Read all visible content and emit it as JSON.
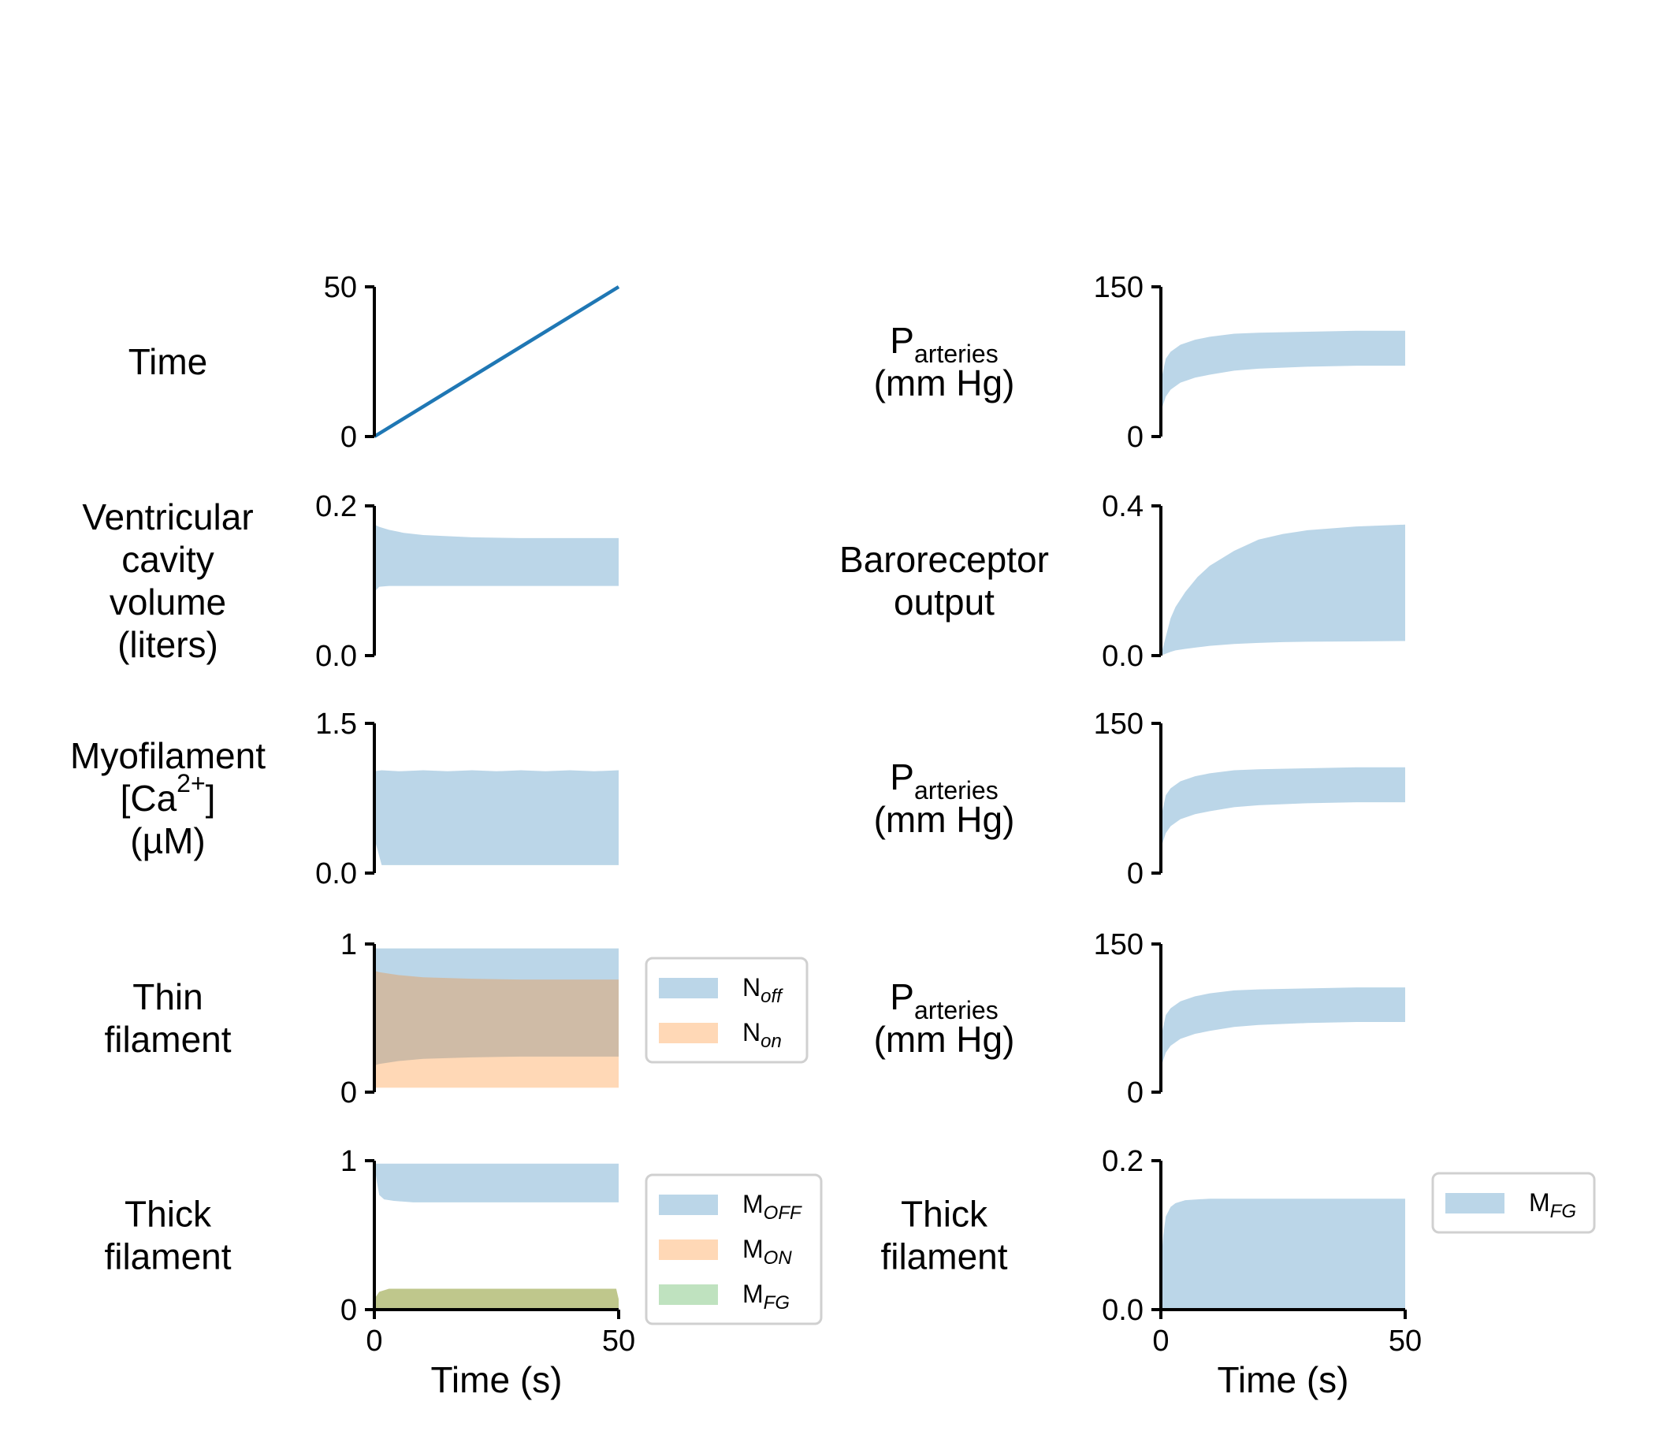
{
  "colors": {
    "blue": "#1f77b4",
    "orange": "#ff7f0e",
    "green": "#2ca02c",
    "axis": "#000000"
  },
  "chart_data": [
    {
      "id": "time",
      "type": "line",
      "col": 0,
      "row": 0,
      "label": [
        "Time"
      ],
      "ylim": [
        0,
        50
      ],
      "yticks": [
        "0",
        "50"
      ],
      "x": [
        0,
        50
      ],
      "y": [
        0,
        50
      ],
      "color": "#1f77b4"
    },
    {
      "id": "ventricular-volume",
      "type": "area",
      "col": 0,
      "row": 1,
      "label": [
        "Ventricular",
        "cavity",
        "volume",
        "(liters)"
      ],
      "ylim": [
        0,
        0.2
      ],
      "yticks": [
        "0.0",
        "0.2"
      ],
      "series": [
        {
          "name": "",
          "color": "#1f77b4",
          "x": [
            0,
            1,
            3,
            6,
            10,
            20,
            30,
            40,
            50
          ],
          "upper": [
            0.175,
            0.172,
            0.168,
            0.164,
            0.161,
            0.158,
            0.157,
            0.157,
            0.157
          ],
          "lower": [
            0.085,
            0.092,
            0.093,
            0.093,
            0.093,
            0.093,
            0.093,
            0.093,
            0.093
          ]
        }
      ]
    },
    {
      "id": "myofilament-ca",
      "type": "area",
      "col": 0,
      "row": 2,
      "label": [
        "Myofilament",
        "[Ca2+]",
        "(µM)"
      ],
      "ylim": [
        0,
        1.5
      ],
      "yticks": [
        "0.0",
        "1.5"
      ],
      "series": [
        {
          "name": "",
          "color": "#1f77b4",
          "x": [
            0,
            1.5,
            5,
            10,
            15,
            20,
            25,
            30,
            35,
            40,
            45,
            50
          ],
          "upper": [
            1.02,
            1.03,
            1.02,
            1.03,
            1.02,
            1.03,
            1.02,
            1.03,
            1.02,
            1.03,
            1.02,
            1.03
          ],
          "lower": [
            0.35,
            0.08,
            0.08,
            0.08,
            0.08,
            0.08,
            0.08,
            0.08,
            0.08,
            0.08,
            0.08,
            0.08
          ]
        }
      ]
    },
    {
      "id": "thin-filament",
      "type": "area",
      "col": 0,
      "row": 3,
      "label": [
        "Thin",
        "filament"
      ],
      "ylim": [
        0,
        1
      ],
      "yticks": [
        "0",
        "1"
      ],
      "legend": [
        {
          "base": "N",
          "sub": "off",
          "color": "#1f77b4"
        },
        {
          "base": "N",
          "sub": "on",
          "color": "#ff7f0e"
        }
      ],
      "series": [
        {
          "name": "Noff",
          "color": "#1f77b4",
          "x": [
            0,
            1,
            5,
            10,
            20,
            30,
            40,
            50
          ],
          "upper": [
            0.97,
            0.97,
            0.97,
            0.97,
            0.97,
            0.97,
            0.97,
            0.97
          ],
          "lower": [
            0.18,
            0.19,
            0.21,
            0.225,
            0.235,
            0.24,
            0.24,
            0.24
          ]
        },
        {
          "name": "Non",
          "color": "#ff7f0e",
          "x": [
            0,
            1,
            5,
            10,
            20,
            30,
            40,
            50
          ],
          "upper": [
            0.82,
            0.81,
            0.79,
            0.775,
            0.765,
            0.76,
            0.76,
            0.76
          ],
          "lower": [
            0.03,
            0.03,
            0.03,
            0.03,
            0.03,
            0.03,
            0.03,
            0.03
          ]
        }
      ]
    },
    {
      "id": "thick-filament-left",
      "type": "area",
      "col": 0,
      "row": 4,
      "label": [
        "Thick",
        "filament"
      ],
      "ylim": [
        0,
        1
      ],
      "yticks": [
        "0",
        "1"
      ],
      "xticks": [
        "0",
        "50"
      ],
      "xlabel": "Time (s)",
      "legend": [
        {
          "base": "M",
          "sub": "OFF",
          "color": "#1f77b4"
        },
        {
          "base": "M",
          "sub": "ON",
          "color": "#ff7f0e"
        },
        {
          "base": "M",
          "sub": "FG",
          "color": "#2ca02c"
        }
      ],
      "series": [
        {
          "name": "MOFF",
          "color": "#1f77b4",
          "x": [
            0,
            0.5,
            1,
            2,
            4,
            8,
            15,
            30,
            49.5,
            50
          ],
          "upper": [
            0.98,
            0.98,
            0.98,
            0.98,
            0.98,
            0.98,
            0.98,
            0.98,
            0.98,
            0.98
          ],
          "lower": [
            0.98,
            0.86,
            0.77,
            0.74,
            0.73,
            0.72,
            0.72,
            0.72,
            0.72,
            0.72
          ]
        },
        {
          "name": "MON",
          "color": "#ff7f0e",
          "x": [
            0,
            1,
            3,
            10,
            30,
            49.5,
            50
          ],
          "upper": [
            0.07,
            0.12,
            0.14,
            0.14,
            0.14,
            0.14,
            0.07
          ],
          "lower": [
            0,
            0,
            0,
            0,
            0,
            0,
            0
          ]
        },
        {
          "name": "MFG",
          "color": "#2ca02c",
          "x": [
            0,
            1,
            3,
            10,
            30,
            49.5,
            50
          ],
          "upper": [
            0.07,
            0.12,
            0.14,
            0.14,
            0.14,
            0.14,
            0.07
          ],
          "lower": [
            0,
            0,
            0,
            0,
            0,
            0,
            0
          ]
        }
      ]
    },
    {
      "id": "arterial-pressure-1",
      "type": "area",
      "col": 1,
      "row": 0,
      "label": [
        "Parteries",
        "(mm Hg)"
      ],
      "ylim": [
        0,
        150
      ],
      "yticks": [
        "0",
        "150"
      ],
      "series": [
        {
          "name": "",
          "color": "#1f77b4",
          "x": [
            0,
            1,
            2,
            4,
            7,
            10,
            15,
            20,
            30,
            40,
            49.5,
            50
          ],
          "upper": [
            55,
            78,
            85,
            92,
            97,
            100,
            103,
            104,
            105,
            106,
            106,
            106
          ],
          "lower": [
            25,
            40,
            47,
            54,
            59,
            62,
            66,
            68,
            70,
            71,
            71,
            71
          ]
        }
      ]
    },
    {
      "id": "baroreceptor",
      "type": "area",
      "col": 1,
      "row": 1,
      "label": [
        "Baroreceptor",
        "output"
      ],
      "ylim": [
        0,
        0.4
      ],
      "yticks": [
        "0.0",
        "0.4"
      ],
      "series": [
        {
          "name": "",
          "color": "#1f77b4",
          "x": [
            0,
            1,
            2,
            3,
            5,
            7.5,
            10,
            15,
            20,
            25,
            30,
            40,
            50
          ],
          "upper": [
            0.0,
            0.05,
            0.1,
            0.13,
            0.17,
            0.21,
            0.24,
            0.28,
            0.31,
            0.325,
            0.335,
            0.345,
            0.35
          ],
          "lower": [
            0.0,
            0.005,
            0.01,
            0.014,
            0.018,
            0.022,
            0.026,
            0.031,
            0.034,
            0.036,
            0.037,
            0.038,
            0.039
          ]
        }
      ]
    },
    {
      "id": "arterial-pressure-2",
      "type": "area",
      "col": 1,
      "row": 2,
      "label": [
        "Parteries",
        "(mm Hg)"
      ],
      "ylim": [
        0,
        150
      ],
      "yticks": [
        "0",
        "150"
      ],
      "series": [
        {
          "name": "",
          "color": "#1f77b4",
          "x": [
            0,
            1,
            2,
            4,
            7,
            10,
            15,
            20,
            30,
            40,
            49.5,
            50
          ],
          "upper": [
            55,
            78,
            85,
            92,
            97,
            100,
            103,
            104,
            105,
            106,
            106,
            106
          ],
          "lower": [
            25,
            40,
            47,
            54,
            59,
            62,
            66,
            68,
            70,
            71,
            71,
            71
          ]
        }
      ]
    },
    {
      "id": "arterial-pressure-3",
      "type": "area",
      "col": 1,
      "row": 3,
      "label": [
        "Parteries",
        "(mm Hg)"
      ],
      "ylim": [
        0,
        150
      ],
      "yticks": [
        "0",
        "150"
      ],
      "series": [
        {
          "name": "",
          "color": "#1f77b4",
          "x": [
            0,
            1,
            2,
            4,
            7,
            10,
            15,
            20,
            30,
            40,
            49.5,
            50
          ],
          "upper": [
            55,
            78,
            85,
            92,
            97,
            100,
            103,
            104,
            105,
            106,
            106,
            106
          ],
          "lower": [
            25,
            40,
            47,
            54,
            59,
            62,
            66,
            68,
            70,
            71,
            71,
            71
          ]
        }
      ]
    },
    {
      "id": "thick-filament-right",
      "type": "area",
      "col": 1,
      "row": 4,
      "label": [
        "Thick",
        "filament"
      ],
      "ylim": [
        0,
        0.2
      ],
      "yticks": [
        "0.0",
        "0.2"
      ],
      "xticks": [
        "0",
        "50"
      ],
      "xlabel": "Time (s)",
      "legend": [
        {
          "base": "M",
          "sub": "FG",
          "color": "#1f77b4"
        }
      ],
      "series": [
        {
          "name": "MFG",
          "color": "#1f77b4",
          "x": [
            0,
            0.5,
            1,
            2,
            3,
            5,
            10,
            20,
            30,
            40,
            49.5,
            50
          ],
          "upper": [
            0.06,
            0.1,
            0.125,
            0.138,
            0.143,
            0.147,
            0.149,
            0.149,
            0.149,
            0.149,
            0.149,
            0.149
          ],
          "lower": [
            0,
            0,
            0,
            0,
            0,
            0,
            0,
            0,
            0,
            0,
            0,
            0
          ]
        }
      ]
    }
  ]
}
